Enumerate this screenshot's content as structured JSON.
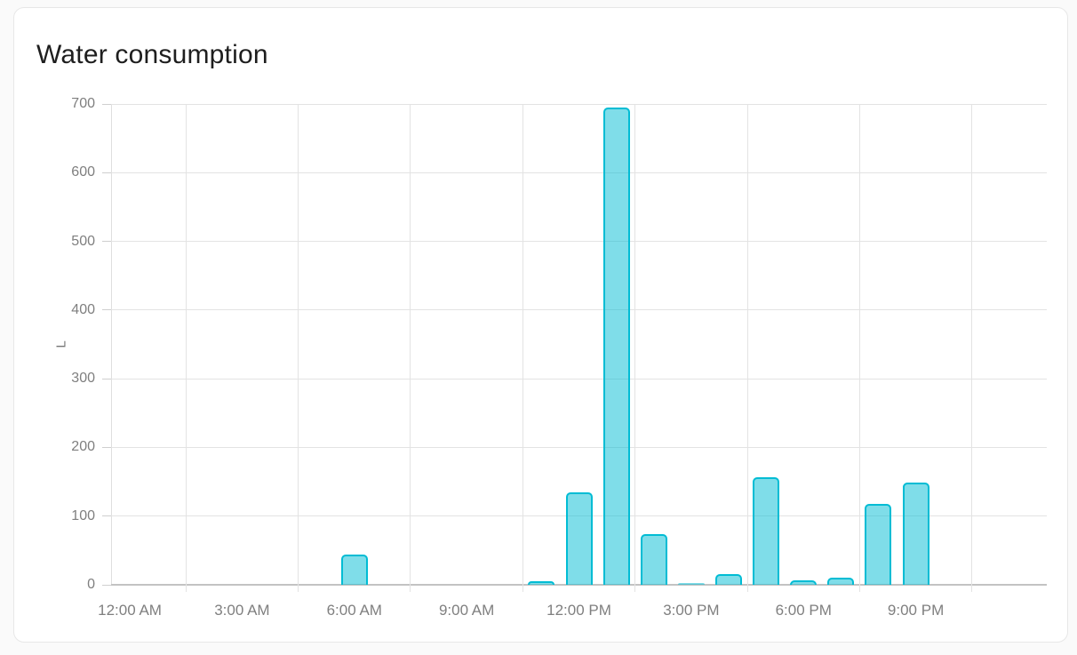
{
  "card": {
    "title": "Water consumption"
  },
  "chart_data": {
    "type": "bar",
    "title": "Water consumption",
    "xlabel": "",
    "ylabel": "L",
    "unit": "L",
    "ylim": [
      0,
      700
    ],
    "y_ticks": [
      0,
      100,
      200,
      300,
      400,
      500,
      600,
      700
    ],
    "x_tick_labels": [
      "12:00 AM",
      "3:00 AM",
      "6:00 AM",
      "9:00 AM",
      "12:00 PM",
      "3:00 PM",
      "6:00 PM",
      "9:00 PM"
    ],
    "x_tick_hours": [
      0,
      3,
      6,
      9,
      12,
      15,
      18,
      21
    ],
    "vgrid_hours": [
      1.5,
      4.5,
      7.5,
      10.5,
      13.5,
      16.5,
      19.5,
      22.5
    ],
    "axis_range_hours": [
      -0.5,
      24.5
    ],
    "grid": true,
    "legend_position": "none",
    "categories": [
      "12:00 AM",
      "1:00 AM",
      "2:00 AM",
      "3:00 AM",
      "4:00 AM",
      "5:00 AM",
      "6:00 AM",
      "7:00 AM",
      "8:00 AM",
      "9:00 AM",
      "10:00 AM",
      "11:00 AM",
      "12:00 PM",
      "1:00 PM",
      "2:00 PM",
      "3:00 PM",
      "4:00 PM",
      "5:00 PM",
      "6:00 PM",
      "7:00 PM",
      "8:00 PM",
      "9:00 PM",
      "10:00 PM",
      "11:00 PM"
    ],
    "values": [
      0,
      0,
      0,
      0,
      0,
      0,
      44,
      0,
      0,
      0,
      0,
      5,
      134,
      695,
      74,
      2,
      16,
      156,
      7,
      10,
      118,
      149,
      0,
      0
    ],
    "colors": {
      "bar_fill": "rgba(0, 188, 212, 0.5)",
      "bar_border": "#00bcd4"
    }
  }
}
